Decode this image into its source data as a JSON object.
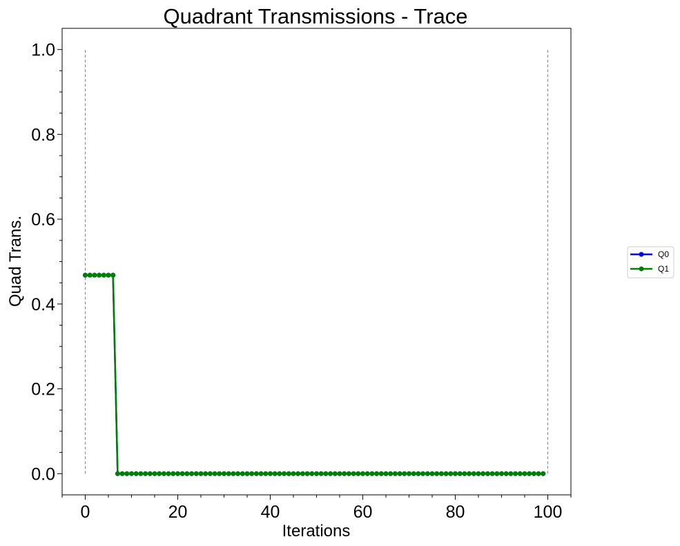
{
  "chart_data": {
    "type": "line",
    "title": "Quadrant Transmissions - Trace",
    "xlabel": "Iterations",
    "ylabel": "Quad Trans.",
    "xlim": [
      -5,
      105
    ],
    "ylim": [
      -0.05,
      1.05
    ],
    "xticks": [
      0,
      20,
      40,
      60,
      80,
      100
    ],
    "xtick_labels": [
      "0",
      "20",
      "40",
      "60",
      "80",
      "100"
    ],
    "yticks": [
      0.0,
      0.2,
      0.4,
      0.6,
      0.8,
      1.0
    ],
    "ytick_labels": [
      "0.0",
      "0.2",
      "0.4",
      "0.6",
      "0.8",
      "1.0"
    ],
    "grid": false,
    "legend_position": "right",
    "vertical_lines": [
      {
        "x": 0,
        "y_range": [
          0,
          1
        ],
        "style": "dashed",
        "color": "#808080"
      },
      {
        "x": 100,
        "y_range": [
          0,
          1
        ],
        "style": "dashed",
        "color": "#808080"
      }
    ],
    "series_rule": "value_a for iterations 0-6, value_b for iterations 7-99",
    "series": [
      {
        "name": "Q0",
        "color": "#0000ff",
        "marker": "circle",
        "x_start": 0,
        "x_end": 99,
        "step_index": 7,
        "value_a": 0.468,
        "value_b": 0.0
      },
      {
        "name": "Q1",
        "color": "#008000",
        "marker": "circle",
        "x_start": 0,
        "x_end": 99,
        "step_index": 7,
        "value_a": 0.468,
        "value_b": 0.0
      }
    ]
  }
}
